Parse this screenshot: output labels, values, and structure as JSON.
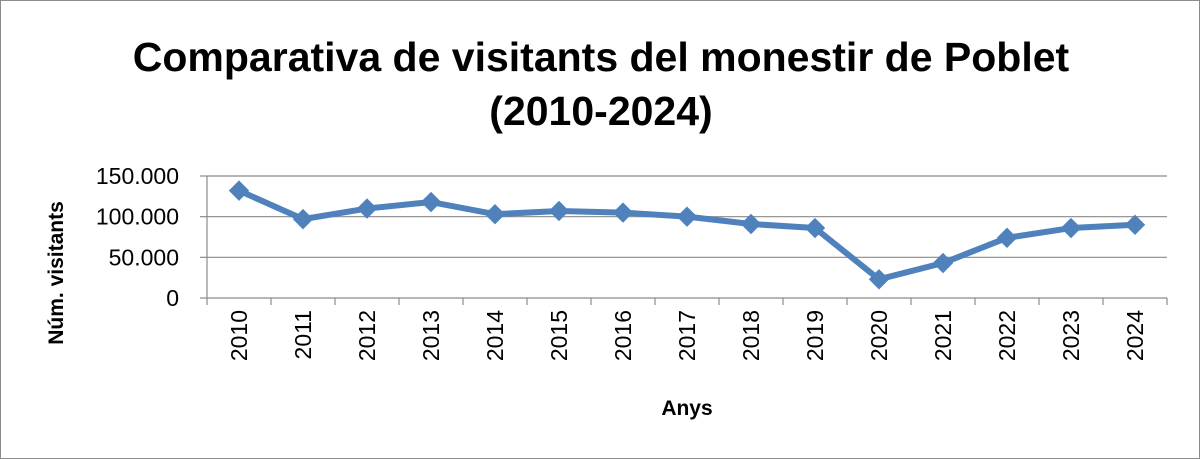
{
  "chart_data": {
    "type": "line",
    "title": "Comparativa de visitants del monestir de Poblet",
    "subtitle": "(2010-2024)",
    "xlabel": "Anys",
    "ylabel": "Núm. visitants",
    "categories": [
      "2010",
      "2011",
      "2012",
      "2013",
      "2014",
      "2015",
      "2016",
      "2017",
      "2018",
      "2019",
      "2020",
      "2021",
      "2022",
      "2023",
      "2024"
    ],
    "series": [
      {
        "values": [
          132000,
          97000,
          110000,
          118000,
          103000,
          107000,
          105000,
          100000,
          91000,
          86000,
          23000,
          43000,
          74000,
          86000,
          90000
        ],
        "color": "#4f81bd"
      }
    ],
    "ylim": [
      0,
      150000
    ],
    "yticks": [
      0,
      50000,
      100000,
      150000
    ],
    "ytick_labels": [
      "0",
      "50.000",
      "100.000",
      "150.000"
    ],
    "grid": true,
    "marker": "diamond",
    "legend": "none"
  }
}
